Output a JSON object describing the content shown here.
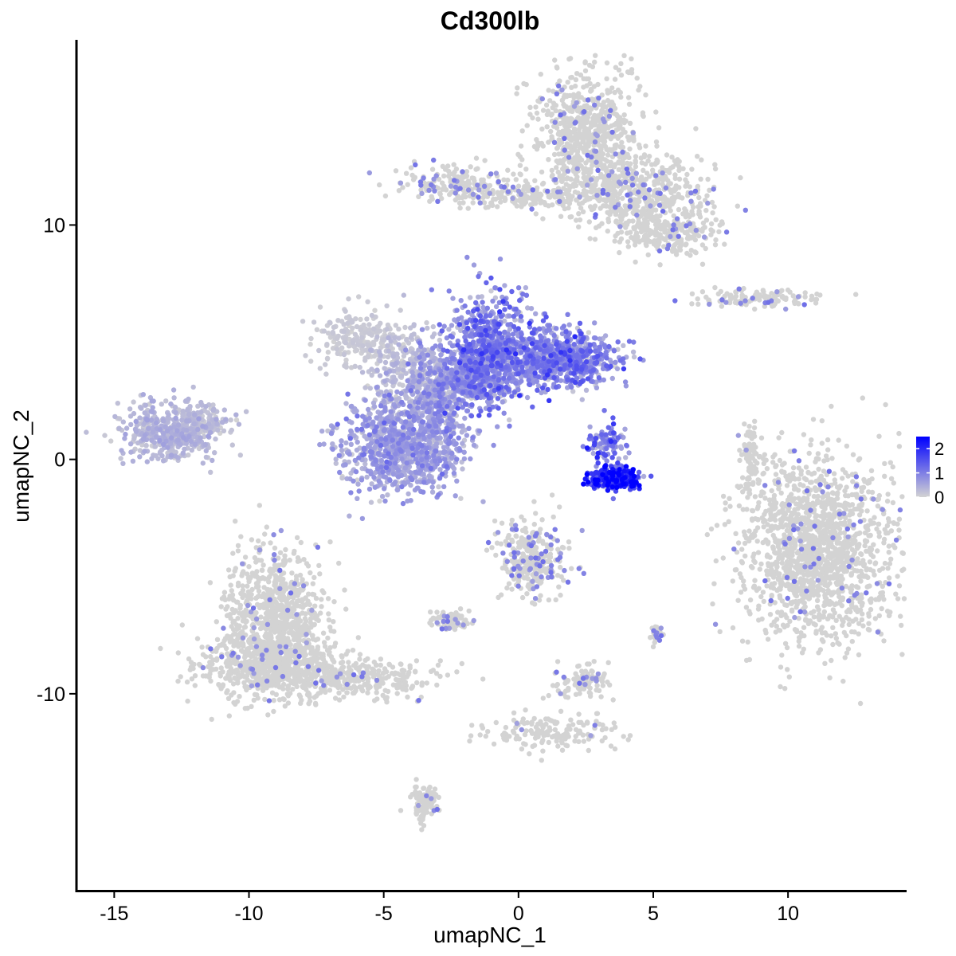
{
  "chart_data": {
    "type": "scatter",
    "title": "Cd300lb",
    "xlabel": "umapNC_1",
    "ylabel": "umapNC_2",
    "xlim": [
      -16.4,
      14.4
    ],
    "ylim": [
      -18.4,
      17.9
    ],
    "xticks": [
      -15,
      -10,
      -5,
      0,
      5,
      10
    ],
    "xtick_labels": [
      "-15",
      "-10",
      "-5",
      "0",
      "5",
      "10"
    ],
    "yticks": [
      -10,
      0,
      10
    ],
    "ytick_labels": [
      "-10",
      "0",
      "10"
    ],
    "grid": false,
    "legend": {
      "position": "right",
      "ticks": [
        0,
        1,
        2
      ],
      "tick_labels": [
        "0",
        "1",
        "2"
      ],
      "range": [
        0,
        2.5
      ]
    },
    "colors": {
      "low": "#d3d3d3",
      "high": "#0000ff",
      "axis": "#000000"
    },
    "clusters": [
      {
        "cx": 2.5,
        "cy": 14.0,
        "sx": 0.9,
        "sy": 1.4,
        "n": 700,
        "expr": 0.02
      },
      {
        "cx": 4.2,
        "cy": 11.5,
        "sx": 1.3,
        "sy": 0.8,
        "n": 500,
        "expr": 0.02
      },
      {
        "cx": 5.5,
        "cy": 9.7,
        "sx": 0.9,
        "sy": 0.5,
        "n": 250,
        "expr": 0.02
      },
      {
        "cx": -2.2,
        "cy": 11.7,
        "sx": 1.1,
        "sy": 0.4,
        "n": 200,
        "expr": 0.04
      },
      {
        "cx": 0.5,
        "cy": 11.2,
        "sx": 1.3,
        "sy": 0.3,
        "n": 150,
        "expr": 0.02
      },
      {
        "cx": 8.8,
        "cy": 6.9,
        "sx": 1.3,
        "sy": 0.2,
        "n": 120,
        "expr": 0.02
      },
      {
        "cx": -13.0,
        "cy": 1.1,
        "sx": 0.9,
        "sy": 0.6,
        "n": 450,
        "expr": 0.3
      },
      {
        "cx": -11.9,
        "cy": 1.6,
        "sx": 0.6,
        "sy": 0.4,
        "n": 120,
        "expr": 0.25
      },
      {
        "cx": -5.9,
        "cy": 5.2,
        "sx": 0.9,
        "sy": 0.6,
        "n": 220,
        "expr": 0.1
      },
      {
        "cx": -4.0,
        "cy": 3.8,
        "sx": 0.8,
        "sy": 0.9,
        "n": 260,
        "expr": 0.25
      },
      {
        "cx": -4.3,
        "cy": 0.5,
        "sx": 1.1,
        "sy": 1.0,
        "n": 900,
        "expr": 0.55
      },
      {
        "cx": -3.0,
        "cy": 2.5,
        "sx": 0.6,
        "sy": 1.2,
        "n": 350,
        "expr": 0.6
      },
      {
        "cx": -1.0,
        "cy": 4.6,
        "sx": 0.8,
        "sy": 1.2,
        "n": 700,
        "expr": 0.9
      },
      {
        "cx": 1.6,
        "cy": 4.3,
        "sx": 1.1,
        "sy": 0.6,
        "n": 700,
        "expr": 0.85
      },
      {
        "cx": -1.8,
        "cy": 3.5,
        "sx": 0.7,
        "sy": 0.6,
        "n": 300,
        "expr": 0.7
      },
      {
        "cx": 3.2,
        "cy": 0.7,
        "sx": 0.4,
        "sy": 0.4,
        "n": 90,
        "expr": 1.0
      },
      {
        "cx": 3.6,
        "cy": -0.8,
        "sx": 0.5,
        "sy": 0.25,
        "n": 280,
        "expr": 1.7
      },
      {
        "cx": 11.1,
        "cy": -3.8,
        "sx": 1.4,
        "sy": 2.0,
        "n": 1500,
        "expr": 0.01
      },
      {
        "cx": 8.6,
        "cy": -0.1,
        "sx": 0.2,
        "sy": 0.9,
        "n": 90,
        "expr": 0.02
      },
      {
        "cx": 0.6,
        "cy": -4.2,
        "sx": 0.7,
        "sy": 0.8,
        "n": 300,
        "expr": 0.05
      },
      {
        "cx": -2.5,
        "cy": -6.9,
        "sx": 0.4,
        "sy": 0.2,
        "n": 80,
        "expr": 0.05
      },
      {
        "cx": -9.0,
        "cy": -6.7,
        "sx": 0.9,
        "sy": 1.4,
        "n": 800,
        "expr": 0.01
      },
      {
        "cx": -9.3,
        "cy": -8.8,
        "sx": 1.3,
        "sy": 0.7,
        "n": 600,
        "expr": 0.01
      },
      {
        "cx": -6.0,
        "cy": -9.4,
        "sx": 1.4,
        "sy": 0.4,
        "n": 300,
        "expr": 0.01
      },
      {
        "cx": -3.5,
        "cy": -14.7,
        "sx": 0.25,
        "sy": 0.4,
        "n": 100,
        "expr": 0.02
      },
      {
        "cx": 1.2,
        "cy": -11.6,
        "sx": 1.4,
        "sy": 0.4,
        "n": 160,
        "expr": 0.01
      },
      {
        "cx": 2.3,
        "cy": -9.5,
        "sx": 0.5,
        "sy": 0.35,
        "n": 100,
        "expr": 0.03
      },
      {
        "cx": 5.1,
        "cy": -7.4,
        "sx": 0.15,
        "sy": 0.2,
        "n": 25,
        "expr": 0.05
      }
    ]
  }
}
